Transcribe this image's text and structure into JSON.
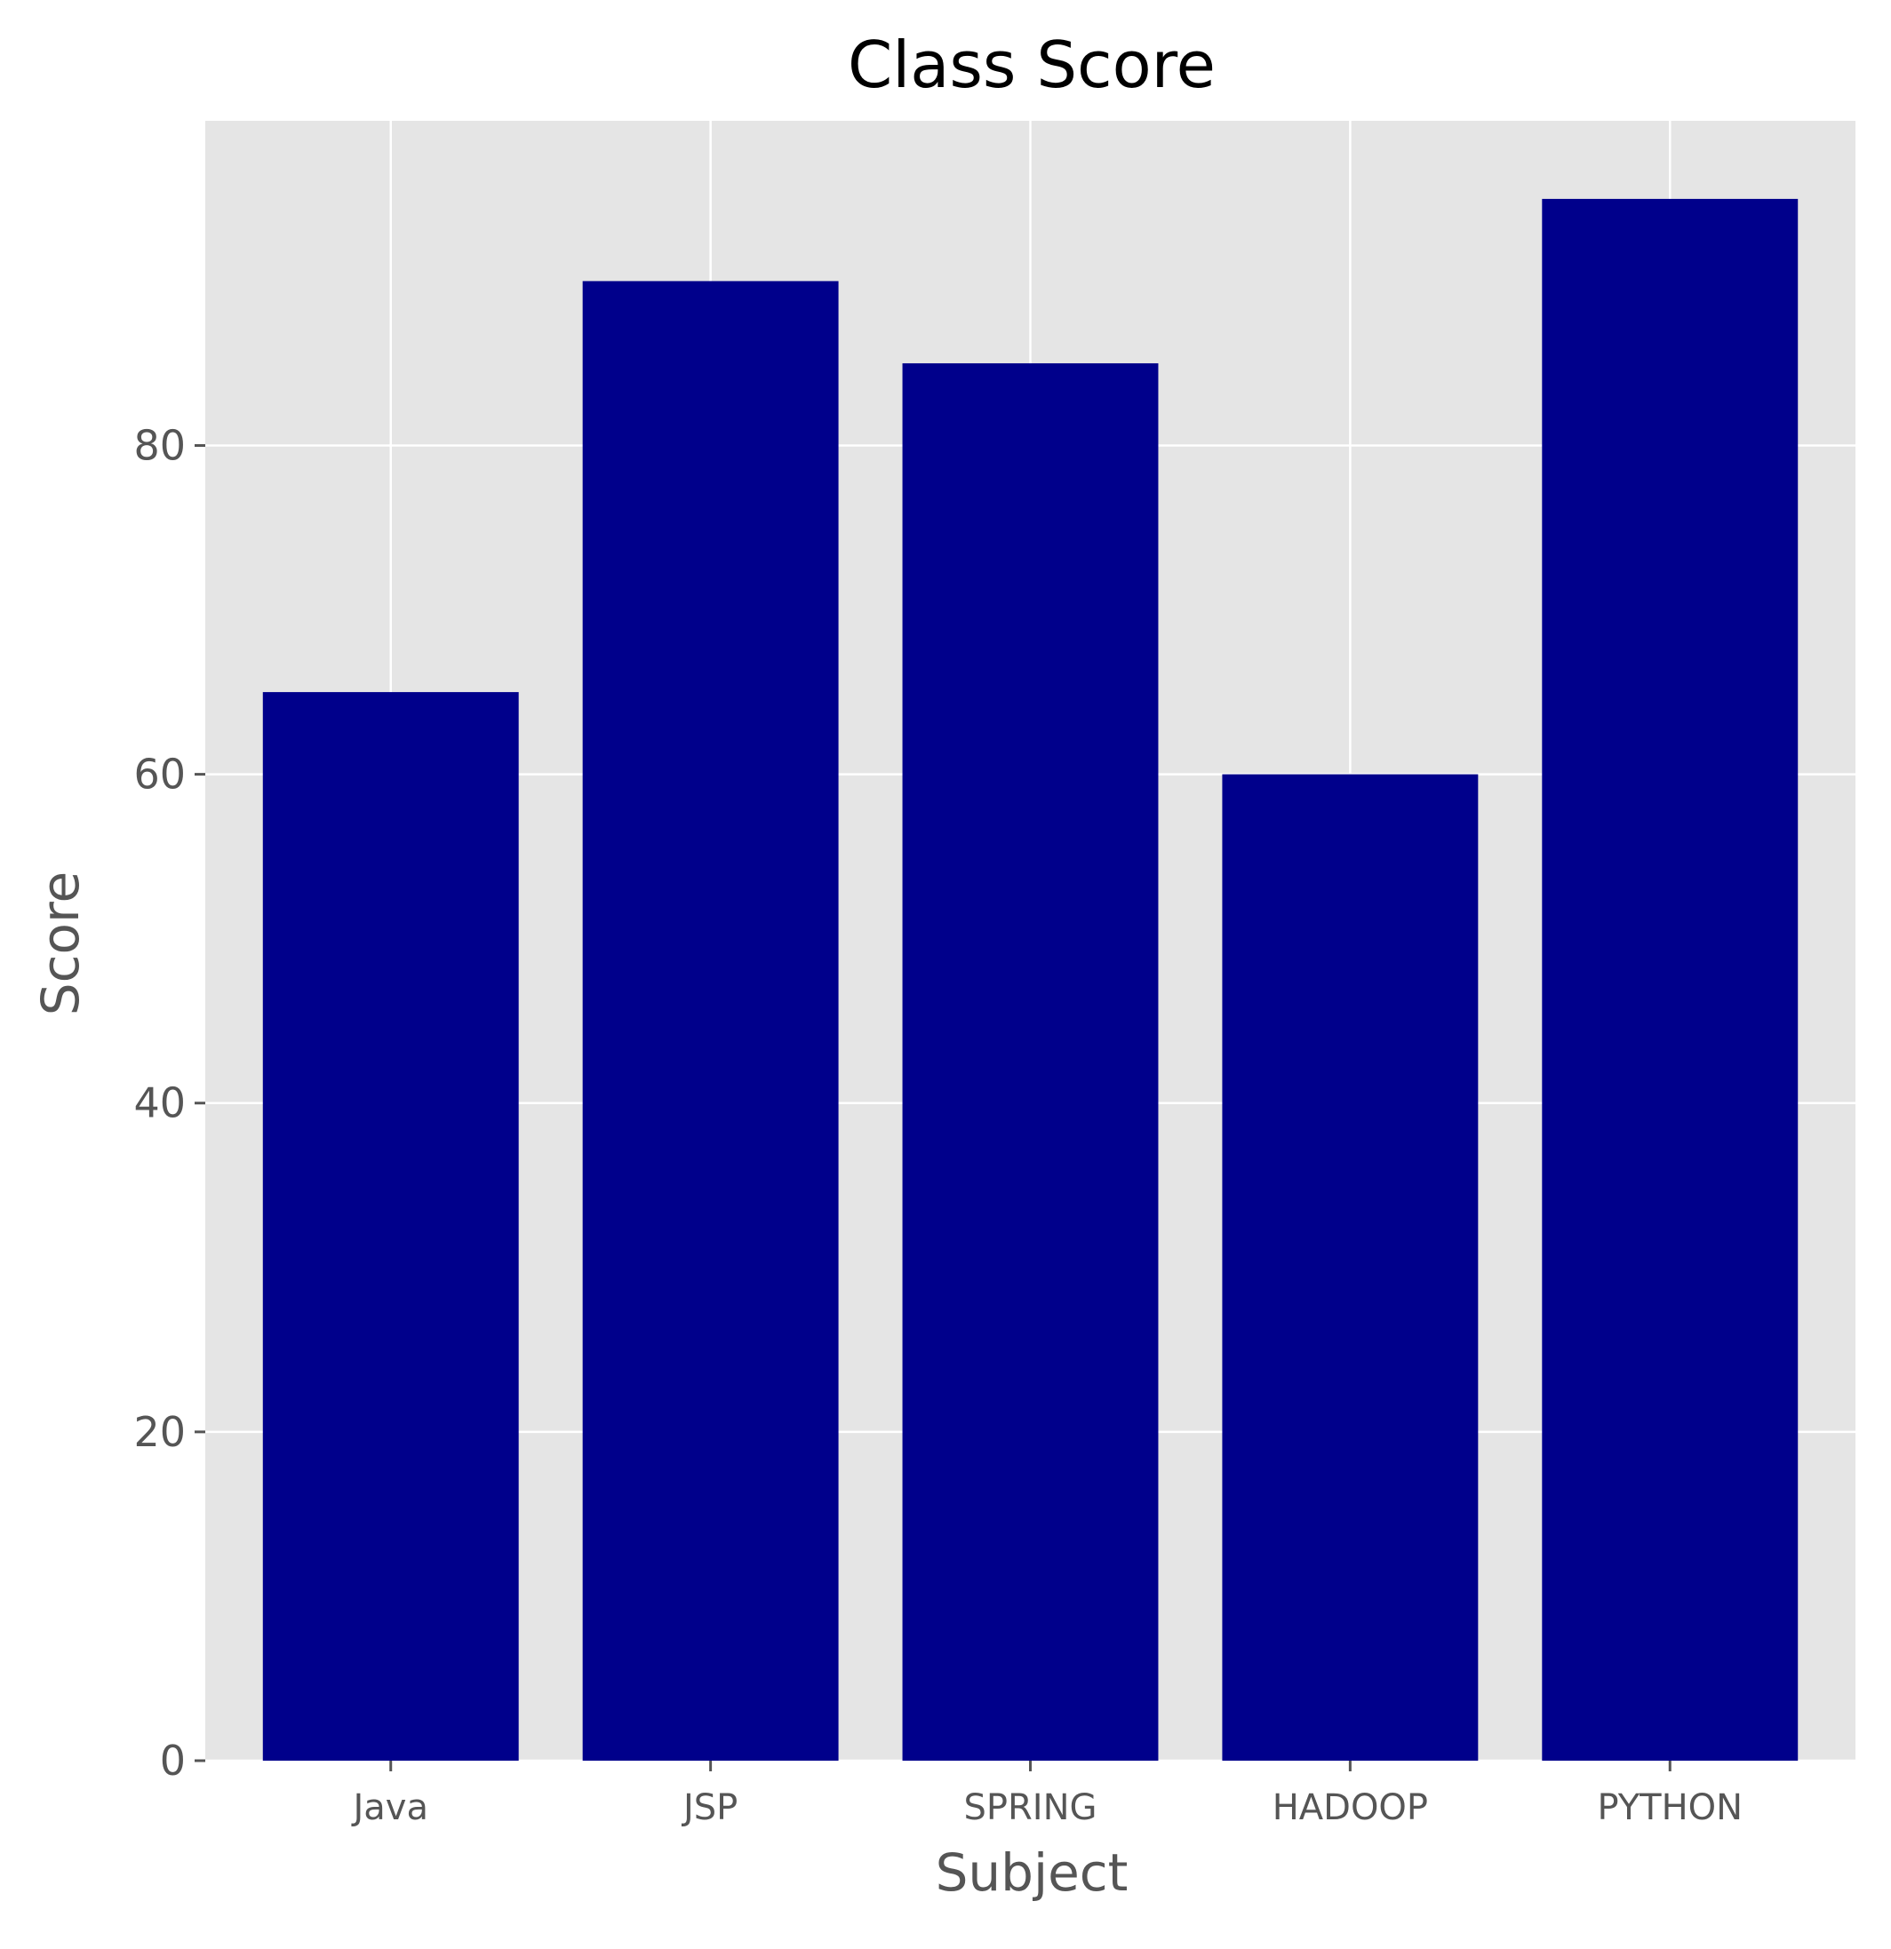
{
  "chart_data": {
    "type": "bar",
    "title": "Class Score",
    "xlabel": "Subject",
    "ylabel": "Score",
    "categories": [
      "Java",
      "JSP",
      "SPRING",
      "HADOOP",
      "PYTHON"
    ],
    "values": [
      65,
      90,
      85,
      60,
      95
    ],
    "ylim": [
      0,
      99.75
    ],
    "yticks": [
      0,
      20,
      40,
      60,
      80
    ],
    "ytick_labels": [
      "0",
      "20",
      "40",
      "60",
      "80"
    ],
    "grid": true,
    "legend": "none",
    "colors": {
      "bar": "#00008b",
      "plot_background": "#e5e5e5",
      "grid": "#ffffff",
      "tick": "#555555",
      "title": "#000000"
    }
  }
}
